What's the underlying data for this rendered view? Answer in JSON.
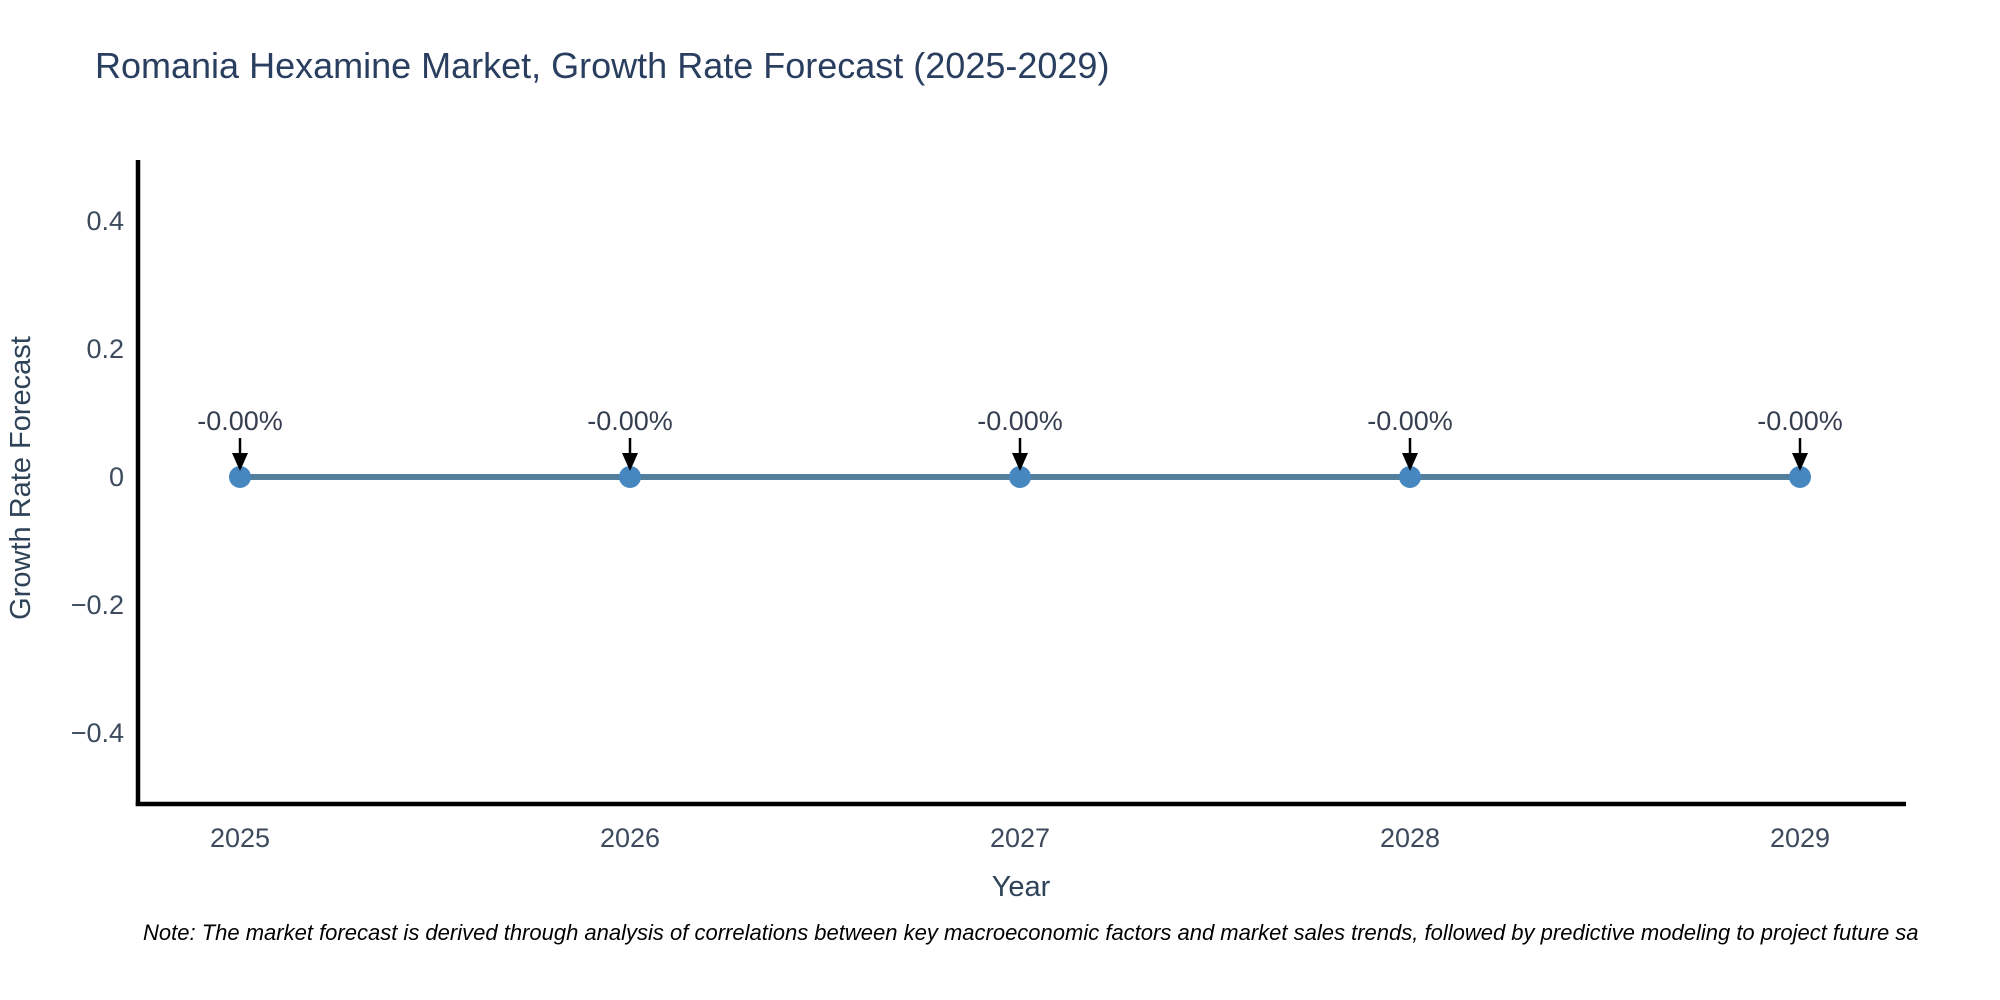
{
  "chart": {
    "title": "Romania Hexamine Market, Growth Rate Forecast (2025-2029)",
    "x_axis": {
      "label": "Year",
      "ticks": [
        "2025",
        "2026",
        "2027",
        "2028",
        "2029"
      ]
    },
    "y_axis": {
      "label": "Growth Rate Forecast",
      "ticks": [
        "0.4",
        "0.2",
        "0",
        "−0.2",
        "−0.4"
      ]
    },
    "note": "Note: The market forecast is derived through analysis of correlations between key macroeconomic factors and market sales trends, followed by predictive modeling to project future sa"
  },
  "chart_data": {
    "type": "line",
    "title": "Romania Hexamine Market, Growth Rate Forecast (2025-2029)",
    "xlabel": "Year",
    "ylabel": "Growth Rate Forecast",
    "x": [
      2025,
      2026,
      2027,
      2028,
      2029
    ],
    "series": [
      {
        "name": "Growth Rate Forecast",
        "values": [
          0,
          0,
          0,
          0,
          0
        ]
      }
    ],
    "point_labels": [
      "-0.00%",
      "-0.00%",
      "-0.00%",
      "-0.00%",
      "-0.00%"
    ],
    "yticks": [
      0.4,
      0.2,
      0,
      -0.2,
      -0.4
    ],
    "ylim": [
      -0.5,
      0.5
    ],
    "grid": false,
    "legend": false,
    "marker": "circle",
    "annotation_arrows": true,
    "colors": {
      "background": "#ffffff",
      "line": "#537e9c",
      "marker": "#4687bf",
      "arrow": "#000000",
      "axis_line": "#000000",
      "title": "#2a3f5f",
      "axis_title": "#2f4358",
      "tick_label": "#3d4a5e",
      "annotation_text": "#353f4f",
      "note_text": "#000000"
    }
  }
}
